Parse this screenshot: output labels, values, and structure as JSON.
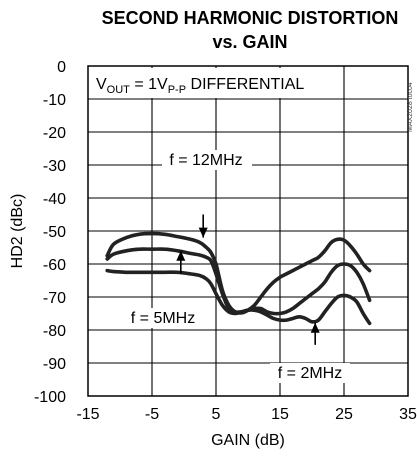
{
  "chart_data": {
    "type": "line",
    "title_line1": "SECOND HARMONIC DISTORTION",
    "title_line2": "vs. GAIN",
    "xlabel": "GAIN (dB)",
    "ylabel": "HD2 (dBc)",
    "xlim": [
      -15,
      35
    ],
    "ylim": [
      -100,
      0
    ],
    "x_ticks": [
      -15,
      -5,
      5,
      15,
      25,
      35
    ],
    "y_ticks": [
      0,
      -10,
      -20,
      -30,
      -40,
      -50,
      -60,
      -70,
      -80,
      -90,
      -100
    ],
    "x_tick_labels": [
      "-15",
      "-5",
      "5",
      "15",
      "25",
      "35"
    ],
    "y_tick_labels": [
      "0",
      "-10",
      "-20",
      "-30",
      "-40",
      "-50",
      "-60",
      "-70",
      "-80",
      "-90",
      "-100"
    ],
    "grid": true,
    "legend": "none",
    "condition_label": {
      "prefix": "V",
      "sub1": "OUT",
      "mid": " = 1V",
      "sub2": "P-P",
      "suffix": " DIFFERENTIAL"
    },
    "watermark": "MAX2028 toc04",
    "series": [
      {
        "name": "f = 12MHz",
        "line_color": "#222222",
        "x": [
          -12,
          -11,
          -9,
          -7,
          -5,
          -3,
          -1,
          1,
          2.5,
          3.5,
          4.2,
          5,
          6,
          7,
          8,
          9,
          10,
          11,
          12,
          13,
          14,
          15,
          16,
          17,
          18,
          19,
          20,
          21,
          22,
          23,
          24,
          25,
          26,
          27,
          28,
          29
        ],
        "y": [
          -57.5,
          -54,
          -52,
          -51,
          -50.8,
          -51,
          -51.7,
          -52.5,
          -53.5,
          -55,
          -56.5,
          -60,
          -68,
          -72.5,
          -74.5,
          -74.8,
          -74,
          -72.5,
          -70,
          -67.5,
          -65.5,
          -64,
          -63,
          -62,
          -61,
          -60,
          -59,
          -58,
          -56,
          -53.5,
          -52.5,
          -52.8,
          -54.5,
          -57,
          -60,
          -62
        ]
      },
      {
        "name": "f = 5MHz",
        "line_color": "#222222",
        "x": [
          -12,
          -11,
          -9,
          -7,
          -5,
          -3,
          -1,
          1,
          2.5,
          3.5,
          4.2,
          5,
          6,
          7,
          8,
          9,
          10,
          11,
          12,
          13,
          14,
          15,
          16,
          17,
          18,
          19,
          20,
          21,
          22,
          23,
          24,
          25,
          26,
          27,
          28,
          29
        ],
        "y": [
          -58.5,
          -57,
          -56,
          -55.5,
          -55.5,
          -55.5,
          -56,
          -56.8,
          -57.3,
          -58,
          -59,
          -63,
          -69,
          -73.5,
          -74.5,
          -74.5,
          -74,
          -73.5,
          -73.5,
          -74.5,
          -75,
          -75,
          -74.5,
          -73.5,
          -72,
          -70.5,
          -69,
          -67.5,
          -65.5,
          -62.5,
          -60.5,
          -60,
          -60.5,
          -62.5,
          -66,
          -71
        ]
      },
      {
        "name": "f = 2MHz",
        "line_color": "#222222",
        "x": [
          -12,
          -11,
          -9,
          -7,
          -5,
          -3,
          -1,
          1,
          2.5,
          3.5,
          4.2,
          5,
          6,
          7,
          8,
          9,
          10,
          11,
          12,
          13,
          14,
          15,
          16,
          17,
          18,
          19,
          20,
          21,
          22,
          23,
          24,
          25,
          26,
          27,
          28,
          29
        ],
        "y": [
          -62,
          -62.3,
          -62.5,
          -62.5,
          -62.5,
          -62.5,
          -62.5,
          -63,
          -63.5,
          -64.5,
          -66,
          -69,
          -72.5,
          -74.5,
          -75,
          -74.5,
          -74,
          -74,
          -74.5,
          -75.5,
          -76.5,
          -77,
          -77,
          -76.5,
          -76,
          -76.5,
          -77.5,
          -77,
          -74.5,
          -72,
          -70,
          -69.5,
          -70,
          -71.5,
          -75,
          -78
        ]
      }
    ],
    "annotations": [
      {
        "text": "f = 12MHz",
        "arrow_tail": [
          3.0,
          -45.0
        ],
        "arrow_head": [
          3.0,
          -52.0
        ]
      },
      {
        "text": "f = 5MHz",
        "arrow_tail": [
          -0.5,
          -63.0
        ],
        "arrow_head": [
          -0.5,
          -56.0
        ]
      },
      {
        "text": "f = 2MHz",
        "arrow_tail": [
          20.5,
          -84.5
        ],
        "arrow_head": [
          20.5,
          -77.8
        ]
      }
    ]
  }
}
